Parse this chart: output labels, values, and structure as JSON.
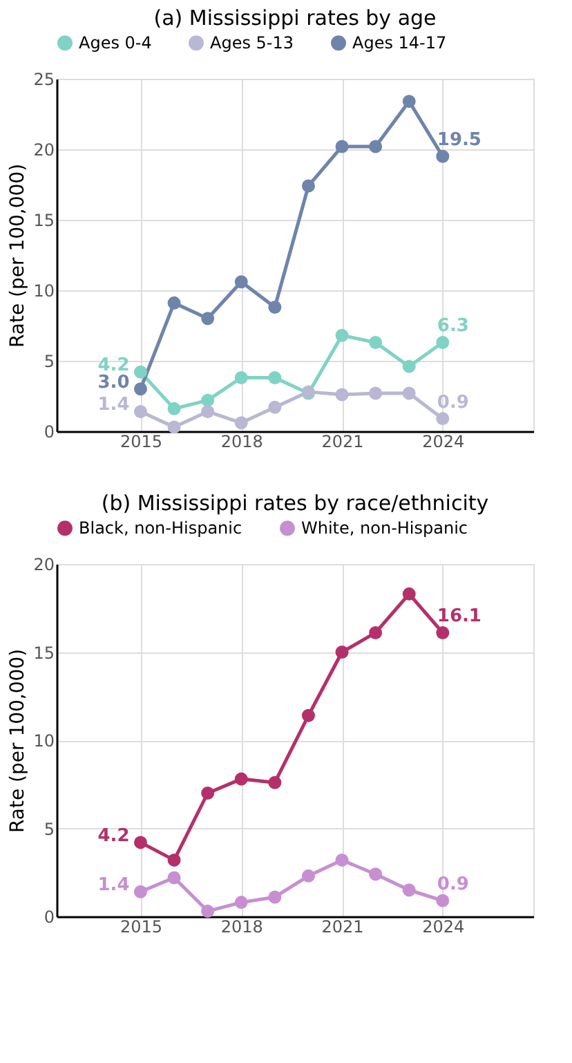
{
  "chart_data": [
    {
      "type": "line",
      "title": "(a) Mississippi rates by age",
      "ylabel": "Rate (per 100,000)",
      "x": [
        2015,
        2016,
        2017,
        2018,
        2019,
        2020,
        2021,
        2022,
        2023,
        2024
      ],
      "xlim": [
        2012.5,
        2026.7
      ],
      "xticks": [
        2015,
        2018,
        2021,
        2024
      ],
      "ylim": [
        0,
        25
      ],
      "yticks": [
        0,
        5,
        10,
        15,
        20,
        25
      ],
      "grid": true,
      "legend": "top",
      "marker": "circle",
      "line_style": "solid",
      "series": [
        {
          "name": "Ages 0-4",
          "color": "#7fd3c4",
          "values": [
            4.2,
            1.6,
            2.2,
            3.8,
            3.8,
            2.7,
            6.8,
            6.3,
            4.6,
            6.3
          ],
          "value_labels": [
            "4.2",
            null,
            null,
            null,
            null,
            null,
            null,
            null,
            null,
            "6.3"
          ]
        },
        {
          "name": "Ages 5-13",
          "color": "#b8b8d4",
          "values": [
            1.4,
            0.3,
            1.4,
            0.6,
            1.7,
            2.8,
            2.6,
            2.7,
            2.7,
            0.9
          ],
          "value_labels": [
            "1.4",
            null,
            null,
            null,
            null,
            null,
            null,
            null,
            null,
            "0.9"
          ]
        },
        {
          "name": "Ages 14-17",
          "color": "#6f84ab",
          "values": [
            3.0,
            9.1,
            8.0,
            10.6,
            8.8,
            17.4,
            20.2,
            20.2,
            23.4,
            19.5
          ],
          "value_labels": [
            "3.0",
            null,
            null,
            null,
            null,
            null,
            null,
            null,
            null,
            "19.5"
          ]
        }
      ]
    },
    {
      "type": "line",
      "title": "(b) Mississippi rates by race/ethnicity",
      "ylabel": "Rate (per 100,000)",
      "x": [
        2015,
        2016,
        2017,
        2018,
        2019,
        2020,
        2021,
        2022,
        2023,
        2024
      ],
      "xlim": [
        2012.5,
        2026.7
      ],
      "xticks": [
        2015,
        2018,
        2021,
        2024
      ],
      "ylim": [
        0,
        20
      ],
      "yticks": [
        0,
        5,
        10,
        15,
        20
      ],
      "grid": true,
      "legend": "top",
      "marker": "circle",
      "line_style": "solid",
      "series": [
        {
          "name": "Black, non-Hispanic",
          "color": "#b5306a",
          "values": [
            4.2,
            3.2,
            7.0,
            7.8,
            7.6,
            11.4,
            15.0,
            16.1,
            18.3,
            16.1
          ],
          "value_labels": [
            "4.2",
            null,
            null,
            null,
            null,
            null,
            null,
            null,
            null,
            "16.1"
          ]
        },
        {
          "name": "White, non-Hispanic",
          "color": "#c78fd2",
          "values": [
            1.4,
            2.2,
            0.3,
            0.8,
            1.1,
            2.3,
            3.2,
            2.4,
            1.5,
            0.9
          ],
          "value_labels": [
            "1.4",
            null,
            null,
            null,
            null,
            null,
            null,
            null,
            null,
            "0.9"
          ]
        }
      ]
    }
  ]
}
